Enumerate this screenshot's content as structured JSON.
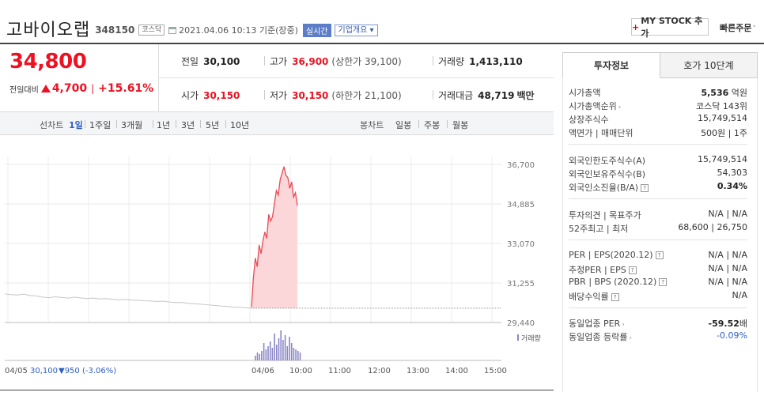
{
  "header": {
    "company": "고바이오랩",
    "code": "348150",
    "market": "코스닥",
    "datetime": "2021.04.06 10:13 기준(장중)",
    "realtime": "실시간",
    "overview": "기업개요",
    "mystock": "MY STOCK 추가",
    "quick_order": "빠른주문"
  },
  "price": {
    "current": "34,800",
    "change_label": "전일대비",
    "change_amount": "4,700",
    "change_pct": "+15.61%",
    "prev_close_label": "전일",
    "prev_close": "30,100",
    "high_label": "고가",
    "high": "36,900",
    "upper_limit_note": "(상한가 39,100)",
    "volume_label": "거래량",
    "volume": "1,413,110",
    "open_label": "시가",
    "open": "30,150",
    "low_label": "저가",
    "low": "30,150",
    "lower_limit_note": "(하한가 21,100)",
    "trade_value_label": "거래대금",
    "trade_value": "48,719",
    "trade_value_unit": "백만"
  },
  "period_bar": {
    "line_label": "선차트",
    "line_options": [
      "1일",
      "1주일",
      "3개월",
      "1년",
      "3년",
      "5년",
      "10년"
    ],
    "candle_label": "봉차트",
    "candle_options": [
      "일봉",
      "주봉",
      "월봉"
    ]
  },
  "chart_data": {
    "type": "area",
    "y_ticks": [
      "36,700",
      "34,885",
      "33,070",
      "31,255",
      "29,440"
    ],
    "ylim": [
      29440,
      36700
    ],
    "x_ticks": [
      "04/06",
      "10:00",
      "11:00",
      "12:00",
      "13:00",
      "14:00",
      "15:00"
    ],
    "prev_day": {
      "label": "04/05",
      "close_text": "30,100",
      "change_text": "▼950 (-3.06%)",
      "values": [
        30750,
        30720,
        30700,
        30740,
        30680,
        30660,
        30600,
        30580,
        30620,
        30590,
        30560,
        30600,
        30570,
        30540,
        30560,
        30520,
        30540,
        30510,
        30480,
        30500,
        30470,
        30460,
        30440,
        30430,
        30400,
        30420,
        30380,
        30350,
        30360,
        30320,
        30300,
        30280,
        30250,
        30230,
        30200,
        30180,
        30150,
        30140,
        30120,
        30100
      ]
    },
    "today": {
      "values": [
        30150,
        31500,
        32400,
        32000,
        33000,
        32600,
        33200,
        33600,
        33300,
        34400,
        34100,
        34300,
        34900,
        35500,
        35300,
        36000,
        36300,
        36600,
        36200,
        36100,
        35600,
        35900,
        35200,
        35400,
        34800
      ]
    },
    "volume_label": "거래량",
    "volume_bars": [
      0.15,
      0.25,
      0.2,
      0.3,
      0.55,
      0.35,
      0.45,
      0.6,
      0.4,
      0.85,
      0.5,
      0.7,
      0.95,
      0.65,
      0.8,
      0.45,
      0.75,
      0.55,
      0.4,
      0.35,
      0.3,
      0.25
    ]
  },
  "panel": {
    "tabs": [
      "투자정보",
      "호가 10단계"
    ],
    "rows": [
      {
        "k": "시가총액",
        "v": "5,536",
        "unit": "억원"
      },
      {
        "k": "시가총액순위",
        "v": "코스닥 143위"
      },
      {
        "k": "상장주식수",
        "v": "15,749,514"
      },
      {
        "k": "액면가 | 매매단위",
        "v": "500원 | 1주"
      },
      {
        "k": "외국인한도주식수(A)",
        "v": "15,749,514"
      },
      {
        "k": "외국인보유주식수(B)",
        "v": "54,303"
      },
      {
        "k": "외국인소진율(B/A)",
        "v": "0.34%"
      },
      {
        "k": "투자의견 | 목표주가",
        "v": "N/A | N/A"
      },
      {
        "k": "52주최고 | 최저",
        "v": "68,600 | 26,750"
      },
      {
        "k": "PER | EPS(2020.12)",
        "v": "N/A | N/A"
      },
      {
        "k": "추정PER | EPS",
        "v": "N/A | N/A"
      },
      {
        "k": "PBR | BPS (2020.12)",
        "v": "N/A | N/A"
      },
      {
        "k": "배당수익률",
        "v": "N/A"
      },
      {
        "k": "동일업종 PER",
        "v": "-59.52",
        "unit": "배"
      },
      {
        "k": "동일업종 등락률",
        "v": "-0.09%"
      }
    ]
  },
  "colors": {
    "up": "#e12",
    "down": "#2f5ec4",
    "accent": "#5c7ec9"
  }
}
